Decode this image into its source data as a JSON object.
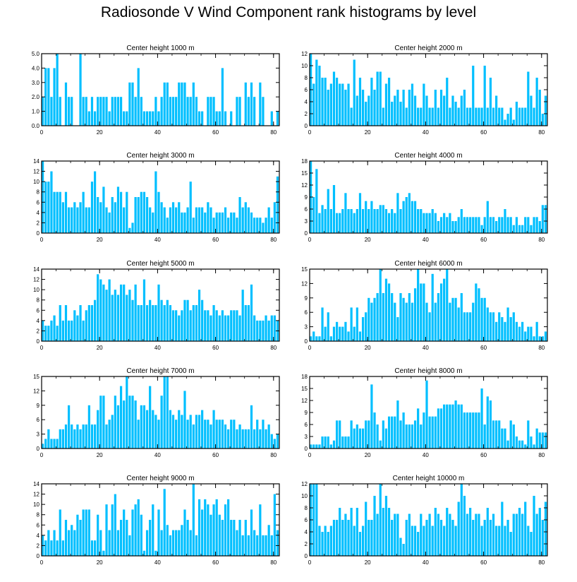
{
  "title": "Radiosonde V Wind Component rank histograms by level",
  "bar_color": "#00bfff",
  "chart_data": [
    {
      "type": "bar",
      "title": "Center height 1000 m",
      "xlim": [
        0,
        82
      ],
      "ylim": [
        0,
        5
      ],
      "xticks": [
        0,
        20,
        40,
        60,
        80
      ],
      "yticks": [
        0,
        1,
        2,
        3,
        4,
        5
      ],
      "ytick_labels": [
        "0.0",
        "1.0",
        "2.0",
        "3.0",
        "4.0",
        "5.0"
      ],
      "values": [
        2,
        4,
        4,
        2,
        4,
        5,
        2,
        0,
        3,
        2,
        2,
        0,
        0,
        5,
        2,
        2,
        1,
        2,
        1,
        2,
        2,
        2,
        2,
        1,
        2,
        2,
        2,
        2,
        1,
        1,
        3,
        3,
        2,
        4,
        2,
        1,
        1,
        1,
        1,
        2,
        1,
        2,
        3,
        3,
        2,
        2,
        2,
        3,
        3,
        3,
        2,
        2,
        3,
        2,
        1,
        1,
        0,
        2,
        2,
        2,
        1,
        1,
        4,
        1,
        0,
        1,
        0,
        2,
        2,
        0,
        3,
        2,
        3,
        2,
        0,
        3,
        2,
        0,
        0,
        1,
        0,
        1
      ]
    },
    {
      "type": "bar",
      "title": "Center height 2000 m",
      "xlim": [
        0,
        82
      ],
      "ylim": [
        0,
        12
      ],
      "xticks": [
        0,
        20,
        40,
        60,
        80
      ],
      "yticks": [
        0,
        2,
        4,
        6,
        8,
        10,
        12
      ],
      "ytick_labels": [
        "0",
        "2",
        "4",
        "6",
        "8",
        "10",
        "12"
      ],
      "values": [
        12,
        7,
        11,
        10,
        8,
        8,
        6,
        7,
        9,
        8,
        7,
        7,
        6,
        7,
        3,
        11,
        5,
        8,
        6,
        4,
        5,
        8,
        6,
        9,
        9,
        3,
        7,
        8,
        4,
        5,
        6,
        4,
        6,
        3,
        6,
        7,
        5,
        3,
        3,
        7,
        5,
        3,
        3,
        6,
        3,
        6,
        5,
        8,
        3,
        5,
        4,
        3,
        5,
        6,
        3,
        3,
        10,
        3,
        3,
        3,
        10,
        3,
        8,
        3,
        5,
        3,
        3,
        1,
        2,
        3,
        1,
        4,
        3,
        3,
        3,
        9,
        5,
        3,
        8,
        6,
        2,
        5
      ]
    },
    {
      "type": "bar",
      "title": "Center height 3000 m",
      "xlim": [
        0,
        82
      ],
      "ylim": [
        0,
        14
      ],
      "xticks": [
        0,
        20,
        40,
        60,
        80
      ],
      "yticks": [
        0,
        2,
        4,
        6,
        8,
        10,
        12,
        14
      ],
      "ytick_labels": [
        "0",
        "2",
        "4",
        "6",
        "8",
        "10",
        "12",
        "14"
      ],
      "values": [
        14,
        10,
        10,
        12,
        8,
        8,
        8,
        6,
        8,
        5,
        5,
        6,
        5,
        6,
        8,
        5,
        5,
        10,
        12,
        7,
        6,
        9,
        5,
        4,
        7,
        6,
        9,
        8,
        5,
        8,
        1,
        2,
        7,
        7,
        8,
        8,
        7,
        5,
        4,
        12,
        8,
        6,
        5,
        3,
        5,
        6,
        5,
        6,
        4,
        4,
        5,
        10,
        3,
        5,
        5,
        5,
        4,
        6,
        5,
        3,
        4,
        4,
        4,
        5,
        3,
        4,
        4,
        3,
        7,
        5,
        6,
        5,
        4,
        3,
        3,
        3,
        2,
        3,
        5,
        3,
        6,
        11
      ]
    },
    {
      "type": "bar",
      "title": "Center height 4000 m",
      "xlim": [
        0,
        82
      ],
      "ylim": [
        0,
        18
      ],
      "xticks": [
        0,
        20,
        40,
        60,
        80
      ],
      "yticks": [
        0,
        3,
        6,
        9,
        12,
        15,
        18
      ],
      "ytick_labels": [
        "0",
        "3",
        "6",
        "9",
        "12",
        "15",
        "18"
      ],
      "values": [
        18,
        9,
        16,
        5,
        7,
        6,
        11,
        6,
        12,
        5,
        5,
        6,
        10,
        6,
        6,
        5,
        6,
        10,
        6,
        8,
        6,
        8,
        6,
        6,
        7,
        7,
        6,
        5,
        6,
        5,
        10,
        6,
        8,
        9,
        10,
        8,
        8,
        6,
        6,
        5,
        5,
        5,
        6,
        5,
        3,
        4,
        5,
        4,
        5,
        3,
        3,
        4,
        6,
        4,
        4,
        4,
        4,
        4,
        4,
        2,
        4,
        8,
        4,
        4,
        3,
        4,
        4,
        6,
        4,
        4,
        2,
        4,
        2,
        2,
        4,
        4,
        2,
        4,
        4,
        3,
        7,
        7
      ]
    },
    {
      "type": "bar",
      "title": "Center height 5000 m",
      "xlim": [
        0,
        82
      ],
      "ylim": [
        0,
        14
      ],
      "xticks": [
        0,
        20,
        40,
        60,
        80
      ],
      "yticks": [
        0,
        2,
        4,
        6,
        8,
        10,
        12,
        14
      ],
      "ytick_labels": [
        "0",
        "2",
        "4",
        "6",
        "8",
        "10",
        "12",
        "14"
      ],
      "values": [
        4,
        3,
        3,
        4,
        5,
        3,
        7,
        4,
        7,
        4,
        4,
        6,
        5,
        7,
        4,
        6,
        7,
        7,
        8,
        13,
        12,
        11,
        10,
        12,
        9,
        10,
        9,
        11,
        11,
        9,
        10,
        8,
        11,
        7,
        7,
        12,
        7,
        8,
        7,
        7,
        11,
        8,
        7,
        8,
        7,
        6,
        6,
        5,
        6,
        8,
        8,
        6,
        7,
        7,
        10,
        8,
        6,
        6,
        5,
        7,
        6,
        5,
        6,
        5,
        5,
        6,
        6,
        6,
        5,
        10,
        7,
        7,
        11,
        5,
        4,
        4,
        4,
        5,
        4,
        5,
        5,
        4
      ]
    },
    {
      "type": "bar",
      "title": "Center height 6000 m",
      "xlim": [
        0,
        82
      ],
      "ylim": [
        0,
        15
      ],
      "xticks": [
        0,
        20,
        40,
        60,
        80
      ],
      "yticks": [
        0,
        3,
        6,
        9,
        12,
        15
      ],
      "ytick_labels": [
        "0",
        "3",
        "6",
        "9",
        "12",
        "15"
      ],
      "values": [
        1,
        2,
        1,
        1,
        7,
        3,
        6,
        1,
        3,
        4,
        3,
        3,
        4,
        2,
        7,
        3,
        7,
        2,
        5,
        6,
        9,
        8,
        9,
        10,
        15,
        10,
        13,
        12,
        10,
        8,
        5,
        10,
        9,
        8,
        10,
        8,
        11,
        15,
        12,
        12,
        8,
        6,
        14,
        8,
        10,
        12,
        13,
        15,
        8,
        9,
        9,
        7,
        10,
        6,
        6,
        6,
        8,
        12,
        11,
        9,
        9,
        7,
        6,
        6,
        4,
        6,
        5,
        4,
        7,
        5,
        6,
        4,
        3,
        4,
        2,
        3,
        3,
        1,
        4,
        1,
        1,
        2
      ]
    },
    {
      "type": "bar",
      "title": "Center height 7000 m",
      "xlim": [
        0,
        82
      ],
      "ylim": [
        0,
        15
      ],
      "xticks": [
        0,
        20,
        40,
        60,
        80
      ],
      "yticks": [
        0,
        3,
        6,
        9,
        12,
        15
      ],
      "ytick_labels": [
        "0",
        "3",
        "6",
        "9",
        "12",
        "15"
      ],
      "values": [
        1,
        2,
        4,
        2,
        2,
        2,
        4,
        4,
        5,
        9,
        5,
        4,
        5,
        4,
        5,
        5,
        9,
        5,
        5,
        8,
        11,
        11,
        5,
        6,
        7,
        11,
        9,
        13,
        10,
        15,
        11,
        11,
        10,
        6,
        9,
        9,
        8,
        13,
        8,
        7,
        6,
        11,
        15,
        15,
        8,
        7,
        6,
        8,
        7,
        12,
        6,
        7,
        5,
        7,
        7,
        8,
        6,
        6,
        5,
        8,
        6,
        6,
        6,
        5,
        4,
        6,
        6,
        4,
        5,
        4,
        4,
        4,
        9,
        4,
        6,
        4,
        6,
        4,
        5,
        3,
        2,
        3
      ]
    },
    {
      "type": "bar",
      "title": "Center height 8000 m",
      "xlim": [
        0,
        82
      ],
      "ylim": [
        0,
        18
      ],
      "xticks": [
        0,
        20,
        40,
        60,
        80
      ],
      "yticks": [
        0,
        3,
        6,
        9,
        12,
        15,
        18
      ],
      "ytick_labels": [
        "0",
        "3",
        "6",
        "9",
        "12",
        "15",
        "18"
      ],
      "values": [
        1,
        1,
        1,
        1,
        3,
        3,
        3,
        1,
        2,
        7,
        7,
        3,
        3,
        3,
        7,
        5,
        6,
        5,
        5,
        7,
        7,
        16,
        9,
        6,
        2,
        7,
        5,
        8,
        8,
        8,
        12,
        7,
        9,
        6,
        6,
        6,
        7,
        10,
        6,
        9,
        17,
        8,
        8,
        8,
        10,
        10,
        11,
        11,
        11,
        11,
        12,
        11,
        11,
        9,
        9,
        9,
        9,
        9,
        9,
        15,
        6,
        13,
        12,
        7,
        7,
        7,
        5,
        5,
        2,
        7,
        6,
        3,
        2,
        2,
        1,
        7,
        3,
        1,
        5,
        4,
        4,
        4
      ]
    },
    {
      "type": "bar",
      "title": "Center height 9000 m",
      "xlim": [
        0,
        82
      ],
      "ylim": [
        0,
        14
      ],
      "xticks": [
        0,
        20,
        40,
        60,
        80
      ],
      "yticks": [
        0,
        2,
        4,
        6,
        8,
        10,
        12,
        14
      ],
      "ytick_labels": [
        "0",
        "2",
        "4",
        "6",
        "8",
        "10",
        "12",
        "14"
      ],
      "values": [
        4,
        3,
        5,
        3,
        5,
        3,
        9,
        3,
        7,
        5,
        6,
        5,
        8,
        7,
        9,
        9,
        9,
        3,
        3,
        8,
        5,
        1,
        10,
        5,
        10,
        12,
        5,
        7,
        9,
        7,
        4,
        9,
        10,
        11,
        8,
        1,
        5,
        7,
        10,
        1,
        9,
        5,
        13,
        6,
        4,
        5,
        5,
        5,
        6,
        9,
        7,
        5,
        14,
        4,
        11,
        9,
        11,
        10,
        8,
        10,
        11,
        8,
        7,
        10,
        11,
        7,
        7,
        5,
        7,
        4,
        7,
        4,
        9,
        5,
        4,
        10,
        4,
        4,
        6,
        4,
        12,
        5
      ]
    },
    {
      "type": "bar",
      "title": "Center height 10000 m",
      "xlim": [
        0,
        82
      ],
      "ylim": [
        0,
        12
      ],
      "xticks": [
        0,
        20,
        40,
        60,
        80
      ],
      "yticks": [
        0,
        2,
        4,
        6,
        8,
        10,
        12
      ],
      "ytick_labels": [
        "0",
        "2",
        "4",
        "6",
        "8",
        "10",
        "12"
      ],
      "values": [
        12,
        12,
        12,
        5,
        4,
        5,
        4,
        5,
        6,
        6,
        8,
        6,
        7,
        6,
        8,
        5,
        8,
        4,
        5,
        9,
        6,
        6,
        10,
        7,
        12,
        8,
        10,
        8,
        6,
        7,
        7,
        3,
        2,
        6,
        7,
        5,
        5,
        4,
        7,
        5,
        6,
        7,
        5,
        8,
        7,
        6,
        5,
        8,
        7,
        6,
        5,
        9,
        12,
        10,
        7,
        8,
        6,
        7,
        7,
        5,
        6,
        8,
        6,
        7,
        5,
        5,
        9,
        5,
        6,
        4,
        7,
        7,
        8,
        7,
        9,
        5,
        4,
        10,
        7,
        8,
        6,
        9
      ]
    }
  ]
}
